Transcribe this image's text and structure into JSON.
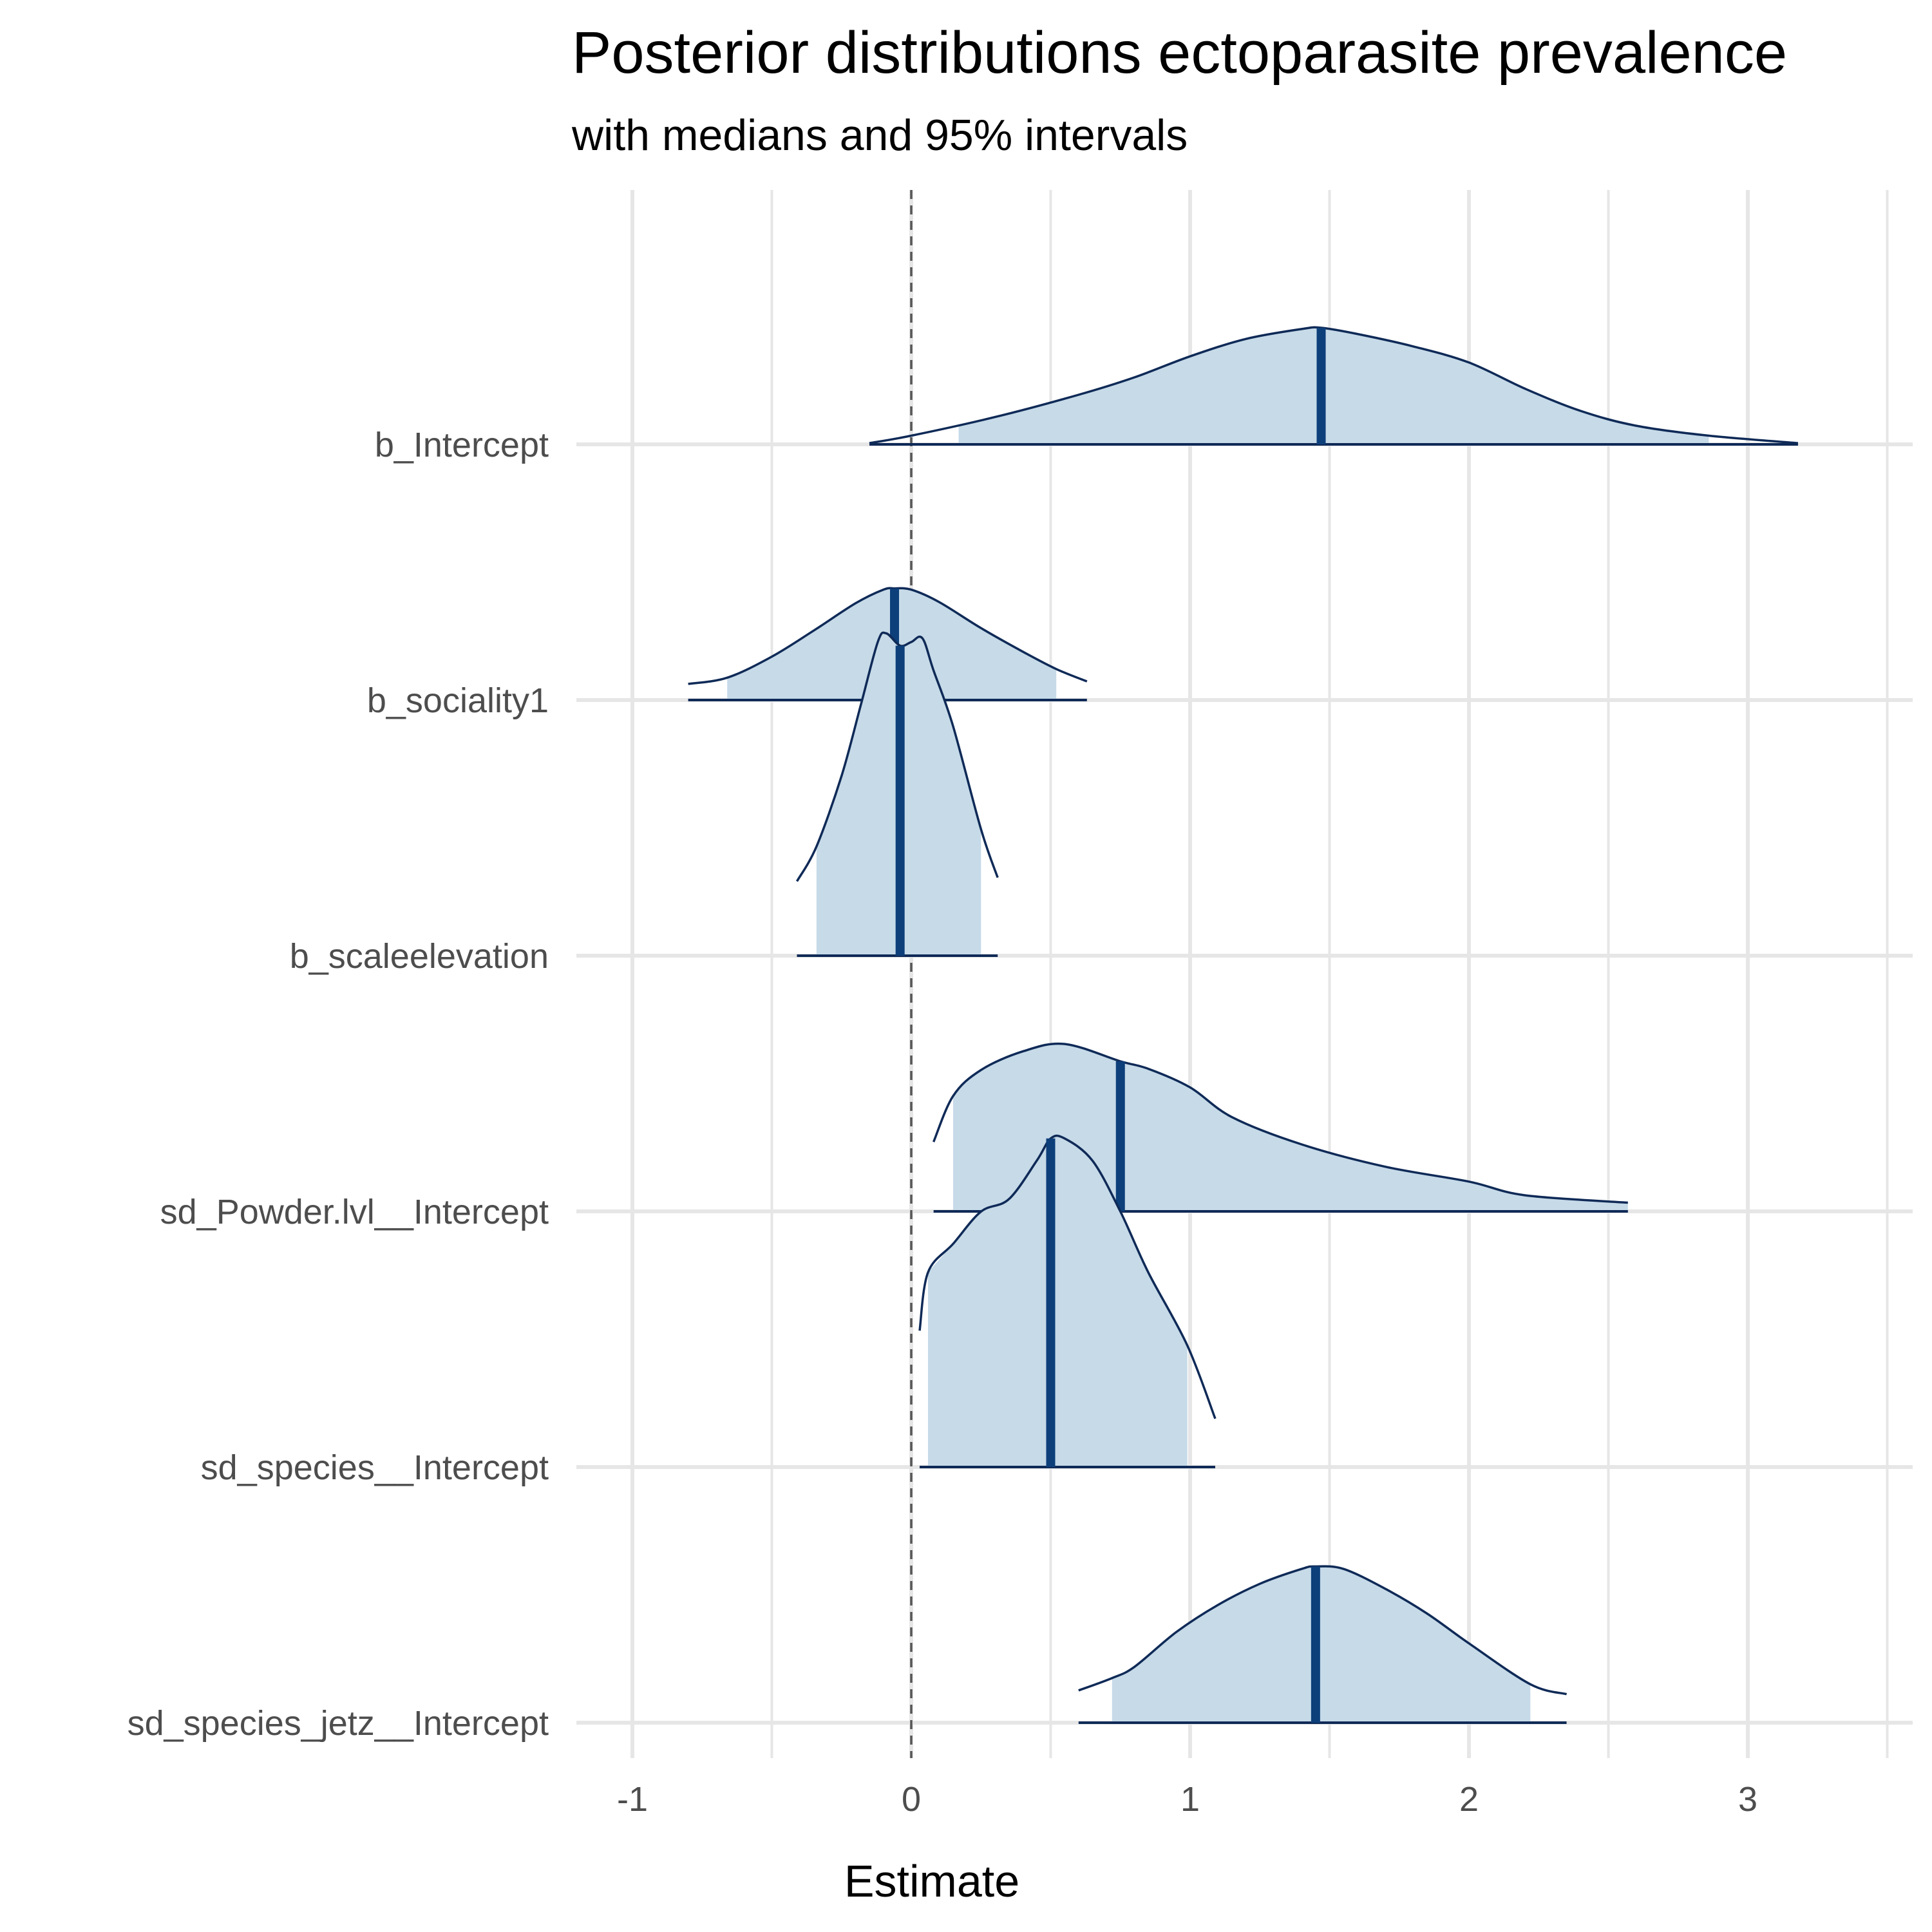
{
  "chart_data": {
    "type": "area",
    "title": "Posterior distributions ectoparasite prevalence",
    "subtitle": "with medians and 95% intervals",
    "xlabel": "Estimate",
    "ylabel": "",
    "xlim": [
      -1.1,
      3.6
    ],
    "x_ticks": [
      {
        "value": -1,
        "label": "-1"
      },
      {
        "value": 0,
        "label": "0"
      },
      {
        "value": 1,
        "label": "1"
      },
      {
        "value": 2,
        "label": "2"
      },
      {
        "value": 3,
        "label": "3"
      }
    ],
    "reference_line": 0,
    "grid": true,
    "colors": {
      "fill": "#c6dae8",
      "outline": "#0f2a57",
      "median": "#0d3f7a",
      "grid": "#e6e6e6",
      "reference": "#555555"
    },
    "series": [
      {
        "name": "b_Intercept",
        "median": 1.47,
        "interval": [
          0.17,
          2.86
        ],
        "range": [
          -0.15,
          3.18
        ],
        "density_x": [
          -0.15,
          0.0,
          0.3,
          0.6,
          0.8,
          1.0,
          1.2,
          1.4,
          1.47,
          1.6,
          1.8,
          2.0,
          2.2,
          2.4,
          2.6,
          2.86,
          3.18
        ],
        "density_y": [
          0.01,
          0.07,
          0.22,
          0.4,
          0.54,
          0.71,
          0.85,
          0.93,
          0.94,
          0.89,
          0.79,
          0.66,
          0.45,
          0.27,
          0.15,
          0.07,
          0.01
        ]
      },
      {
        "name": "b_sociality1",
        "median": -0.06,
        "interval": [
          -0.66,
          0.52
        ],
        "range": [
          -0.8,
          0.63
        ],
        "density_x": [
          -0.8,
          -0.66,
          -0.5,
          -0.35,
          -0.2,
          -0.1,
          -0.06,
          0.0,
          0.1,
          0.25,
          0.4,
          0.52,
          0.63
        ],
        "density_y": [
          0.13,
          0.18,
          0.35,
          0.56,
          0.78,
          0.89,
          0.9,
          0.89,
          0.79,
          0.58,
          0.39,
          0.25,
          0.15
        ]
      },
      {
        "name": "b_scaleelevation",
        "median": -0.04,
        "interval": [
          -0.34,
          0.25
        ],
        "range": [
          -0.41,
          0.31
        ],
        "density_x": [
          -0.41,
          -0.34,
          -0.25,
          -0.18,
          -0.12,
          -0.09,
          -0.04,
          0.0,
          0.04,
          0.08,
          0.15,
          0.25,
          0.31
        ],
        "density_y": [
          0.6,
          0.88,
          1.45,
          2.03,
          2.53,
          2.6,
          2.5,
          2.53,
          2.56,
          2.3,
          1.85,
          1.02,
          0.63
        ]
      },
      {
        "name": "sd_Powder.lvl__Intercept",
        "median": 0.75,
        "interval": [
          0.15,
          2.57
        ],
        "range": [
          0.08,
          2.57
        ],
        "density_x": [
          0.08,
          0.15,
          0.25,
          0.4,
          0.55,
          0.75,
          0.85,
          1.0,
          1.15,
          1.4,
          1.7,
          2.0,
          2.2,
          2.57
        ],
        "density_y": [
          0.56,
          0.93,
          1.14,
          1.29,
          1.35,
          1.21,
          1.15,
          1.0,
          0.76,
          0.54,
          0.36,
          0.24,
          0.13,
          0.07
        ]
      },
      {
        "name": "sd_species__Intercept",
        "median": 0.5,
        "interval": [
          0.06,
          0.99
        ],
        "range": [
          0.03,
          1.09
        ],
        "density_x": [
          0.03,
          0.06,
          0.15,
          0.25,
          0.35,
          0.45,
          0.5,
          0.55,
          0.65,
          0.75,
          0.85,
          0.99,
          1.09
        ],
        "density_y": [
          1.1,
          1.57,
          1.8,
          2.06,
          2.16,
          2.47,
          2.65,
          2.65,
          2.47,
          2.06,
          1.57,
          0.98,
          0.39
        ]
      },
      {
        "name": "sd_species_jetz__Intercept",
        "median": 1.45,
        "interval": [
          0.72,
          2.22
        ],
        "range": [
          0.6,
          2.35
        ],
        "density_x": [
          0.6,
          0.72,
          0.8,
          0.95,
          1.1,
          1.25,
          1.4,
          1.45,
          1.55,
          1.7,
          1.85,
          2.0,
          2.22,
          2.35
        ],
        "density_y": [
          0.26,
          0.36,
          0.45,
          0.73,
          0.95,
          1.12,
          1.24,
          1.26,
          1.24,
          1.08,
          0.88,
          0.64,
          0.31,
          0.23
        ]
      }
    ]
  }
}
